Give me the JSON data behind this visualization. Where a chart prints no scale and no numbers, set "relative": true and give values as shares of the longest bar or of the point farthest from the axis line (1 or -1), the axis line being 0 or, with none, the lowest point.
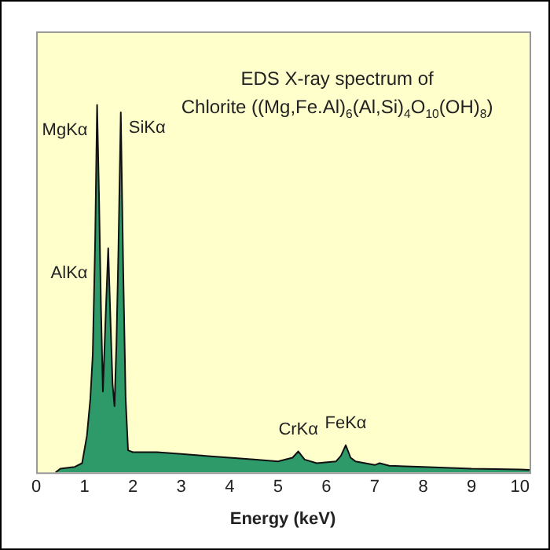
{
  "chart_data": {
    "type": "area",
    "relative": true,
    "title": "EDS X-ray spectrum of\nChlorite ((Mg,Fe.Al)$_{6}$(Al,Si)$_{4}$O$_{10}$(OH)$_{8}$)",
    "xlabel": "Energy (keV)",
    "xlim": [
      0,
      10.2
    ],
    "xticks": [
      0,
      1,
      2,
      3,
      4,
      5,
      6,
      7,
      8,
      9,
      10
    ],
    "grid": false,
    "legend": false,
    "x": [
      0.4,
      0.5,
      0.8,
      0.95,
      1.05,
      1.12,
      1.17,
      1.22,
      1.26,
      1.3,
      1.34,
      1.38,
      1.43,
      1.49,
      1.54,
      1.58,
      1.62,
      1.66,
      1.7,
      1.75,
      1.8,
      1.85,
      1.9,
      2.0,
      2.5,
      3.0,
      3.5,
      4.0,
      4.5,
      5.0,
      5.3,
      5.42,
      5.55,
      5.8,
      6.2,
      6.3,
      6.4,
      6.5,
      6.6,
      7.0,
      7.1,
      7.3,
      8.0,
      9.0,
      10.0,
      10.2
    ],
    "series": [
      {
        "color": "#2e9a6a",
        "values": [
          0,
          0.01,
          0.015,
          0.025,
          0.1,
          0.2,
          0.32,
          0.63,
          1,
          0.75,
          0.45,
          0.22,
          0.4,
          0.61,
          0.4,
          0.24,
          0.18,
          0.35,
          0.6,
          0.98,
          0.55,
          0.2,
          0.06,
          0.055,
          0.055,
          0.05,
          0.045,
          0.04,
          0.035,
          0.03,
          0.04,
          0.057,
          0.035,
          0.025,
          0.03,
          0.045,
          0.074,
          0.04,
          0.03,
          0.02,
          0.025,
          0.018,
          0.015,
          0.01,
          0.008,
          0.007
        ]
      }
    ],
    "annotations": [
      {
        "text": "MgKα",
        "x": 1.26,
        "y": 1
      },
      {
        "text": "AlKα",
        "x": 1.49,
        "y": 0.61
      },
      {
        "text": "SiKα",
        "x": 1.75,
        "y": 0.98
      },
      {
        "text": "CrKα",
        "x": 5.42,
        "y": 0.057
      },
      {
        "text": "FeKα",
        "x": 6.4,
        "y": 0.074
      }
    ]
  }
}
